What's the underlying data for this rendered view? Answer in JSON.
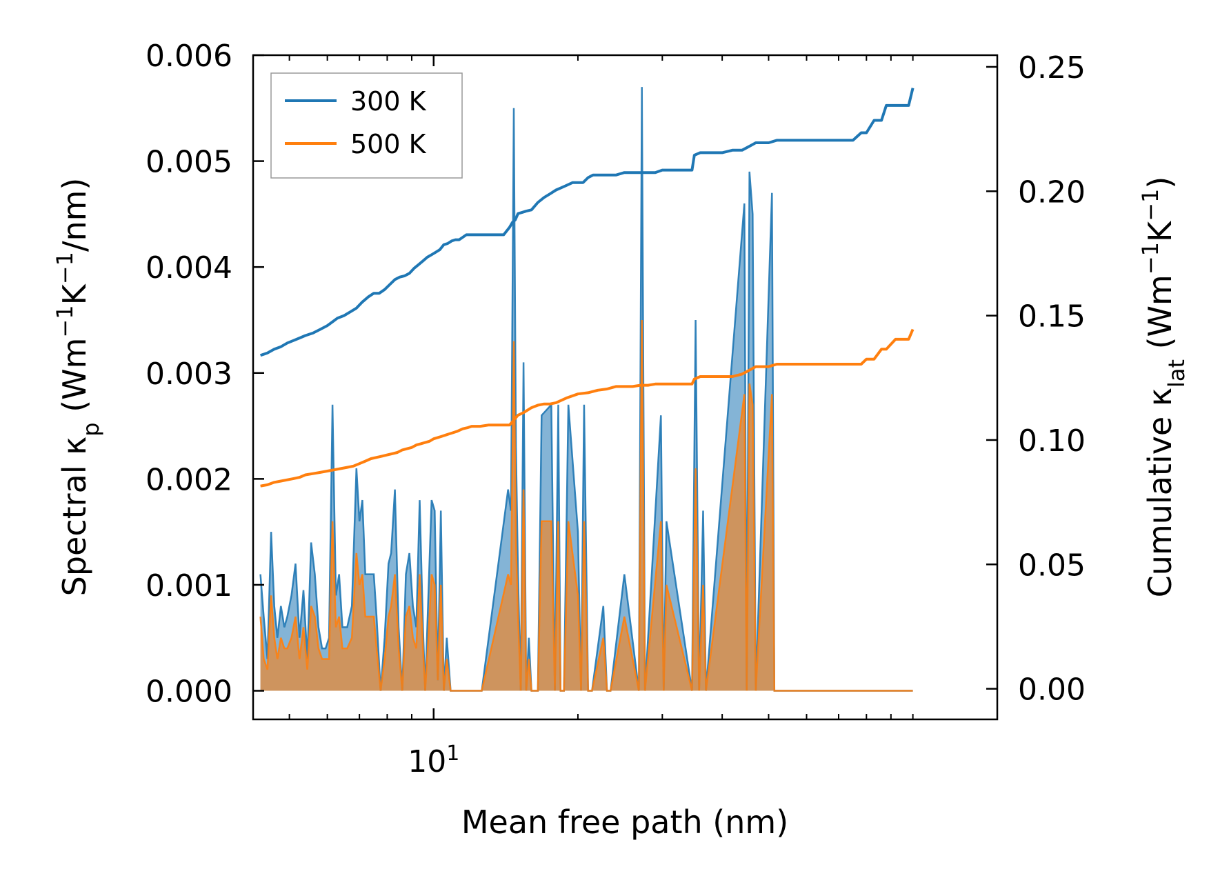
{
  "chart_data": {
    "type": "line",
    "xlabel": "Mean free path (nm)",
    "xscale": "log",
    "xlim": [
      4.2,
      150
    ],
    "x_tick_labels": [
      {
        "value": 10,
        "label": "10",
        "exponent": "1"
      }
    ],
    "left_axis": {
      "label_main": "Spectral κ",
      "label_sub": "p",
      "label_units": " (Wm",
      "label_sup1": "−1",
      "label_mid": "K",
      "label_sup2": "−1",
      "label_end": "/nm)",
      "ylim": [
        -0.00027,
        0.006
      ],
      "ticks": [
        0,
        0.001,
        0.002,
        0.003,
        0.004,
        0.005,
        0.006
      ],
      "tick_labels": [
        "0.000",
        "0.001",
        "0.002",
        "0.003",
        "0.004",
        "0.005",
        "0.006"
      ]
    },
    "right_axis": {
      "label_main": "Cumulative κ",
      "label_sub": "lat",
      "label_units": " (Wm",
      "label_sup1": "−1",
      "label_mid": "K",
      "label_sup2": "−1",
      "label_end": ")",
      "ylim": [
        -0.0123,
        0.2547
      ],
      "ticks": [
        0,
        0.05,
        0.1,
        0.15,
        0.2,
        0.25
      ],
      "tick_labels": [
        "0.00",
        "0.05",
        "0.10",
        "0.15",
        "0.20",
        "0.25"
      ]
    },
    "legend": {
      "location": "top-left",
      "entries": [
        "300 K",
        "500 K"
      ]
    },
    "colors": {
      "300K": "#1f77b4",
      "500K": "#ff7f0e",
      "fill_300K": "#1f77b4",
      "fill_500K": "#ff7f0e"
    },
    "spectral_series": [
      {
        "name": "300 K",
        "x": [
          4.35,
          4.42,
          4.5,
          4.58,
          4.65,
          4.72,
          4.8,
          4.88,
          4.95,
          5.05,
          5.15,
          5.25,
          5.35,
          5.45,
          5.55,
          5.65,
          5.75,
          5.85,
          5.95,
          6.05,
          6.15,
          6.25,
          6.35,
          6.45,
          6.6,
          6.75,
          6.9,
          7.0,
          7.1,
          7.2,
          7.35,
          7.5,
          7.6,
          7.75,
          7.9,
          8.05,
          8.15,
          8.3,
          8.45,
          8.6,
          8.75,
          8.9,
          9.05,
          9.2,
          9.35,
          9.5,
          9.6,
          9.75,
          9.9,
          10.05,
          10.2,
          10.35,
          10.5,
          10.65,
          10.85,
          11.0,
          11.15,
          11.3,
          11.5,
          11.65,
          11.8,
          12.0,
          12.2,
          12.4,
          12.6,
          14.3,
          14.5,
          14.7,
          14.85,
          15.0,
          15.2,
          15.4,
          15.6,
          15.8,
          16.0,
          16.3,
          16.5,
          16.8,
          17.6,
          17.9,
          18.2,
          18.4,
          18.7,
          19.1,
          20.0,
          20.3,
          20.6,
          21.0,
          21.4,
          22.6,
          23.0,
          23.4,
          25.0,
          26.8,
          27.2,
          27.6,
          29.8,
          30.2,
          30.6,
          34.6,
          35.2,
          35.8,
          36.5,
          37.0,
          44.5,
          45.0,
          45.6,
          46.3,
          47.0,
          50.8,
          51.4,
          52.0,
          80.0,
          81.0,
          82.0,
          86.0,
          87.0,
          88.0,
          88.7,
          89.5,
          98.0,
          99.0,
          100.0
        ],
        "values": [
          0.0011,
          0.0007,
          0.0003,
          0.0015,
          0.0008,
          0.0005,
          0.0008,
          0.0006,
          0.0007,
          0.0009,
          0.0012,
          0.0005,
          0.00095,
          0.0003,
          0.0014,
          0.0011,
          0.0006,
          0.0004,
          0.0004,
          0.0005,
          0.0027,
          0.0009,
          0.0011,
          0.0006,
          0.0006,
          0.0008,
          0.0021,
          0.0016,
          0.0018,
          0.0011,
          0.0011,
          0.0011,
          0.0007,
          0.0,
          0.0005,
          0.0012,
          0.0013,
          0.0019,
          0.0006,
          0.0,
          0.0011,
          0.0013,
          0.0008,
          0.0006,
          0.0018,
          0.0006,
          0.0,
          0.0009,
          0.0018,
          0.0017,
          0.0001,
          0.0017,
          0.0,
          0.0005,
          0.0,
          0.0,
          0.0,
          0.0,
          0.0,
          0.0,
          0.0,
          0.0,
          0.0,
          0.0,
          0.0,
          0.0019,
          0.0017,
          0.0055,
          0.0023,
          0.0011,
          0.0,
          0.0031,
          0.0,
          0.0005,
          0.0,
          0.0,
          0.0,
          0.0026,
          0.0027,
          0.0,
          0.0027,
          0.0,
          0.0,
          0.0027,
          0.0015,
          0.0,
          0.0027,
          0.0,
          0.0,
          0.0008,
          0.0,
          0.0,
          0.0011,
          0.0,
          0.0057,
          0.0,
          0.0026,
          0.0,
          0.0016,
          0.0,
          0.0035,
          0.0,
          0.0017,
          0.0,
          0.0046,
          0.0,
          0.0049,
          0.0045,
          0.0,
          0.0047,
          0.0,
          0.0,
          0.0,
          0.0,
          0.0,
          0.0,
          0.0,
          0.0,
          0.0,
          0.0,
          0.0,
          0.0,
          0.0
        ]
      },
      {
        "name": "500 K",
        "x": [
          4.35,
          4.42,
          4.5,
          4.58,
          4.65,
          4.72,
          4.8,
          4.88,
          4.95,
          5.05,
          5.15,
          5.25,
          5.35,
          5.45,
          5.55,
          5.65,
          5.75,
          5.85,
          5.95,
          6.05,
          6.15,
          6.25,
          6.35,
          6.45,
          6.6,
          6.75,
          6.9,
          7.0,
          7.1,
          7.2,
          7.35,
          7.5,
          7.6,
          7.75,
          7.9,
          8.05,
          8.15,
          8.3,
          8.45,
          8.6,
          8.75,
          8.9,
          9.05,
          9.2,
          9.35,
          9.5,
          9.6,
          9.75,
          9.9,
          10.05,
          10.2,
          10.35,
          10.5,
          10.65,
          10.85,
          11.0,
          11.15,
          11.3,
          11.5,
          11.65,
          11.8,
          12.0,
          12.2,
          12.4,
          12.6,
          14.3,
          14.5,
          14.7,
          14.85,
          15.0,
          15.2,
          15.4,
          15.6,
          15.8,
          16.0,
          16.3,
          16.5,
          16.8,
          17.6,
          17.9,
          18.2,
          18.4,
          18.7,
          19.1,
          20.0,
          20.3,
          20.6,
          21.0,
          21.4,
          22.6,
          23.0,
          23.4,
          25.0,
          26.8,
          27.2,
          27.6,
          29.8,
          30.2,
          30.6,
          34.6,
          35.2,
          35.8,
          36.5,
          37.0,
          44.5,
          45.0,
          45.6,
          46.3,
          47.0,
          50.8,
          51.4,
          52.0,
          80.0,
          81.0,
          82.0,
          86.0,
          87.0,
          88.0,
          88.7,
          89.5,
          98.0,
          99.0,
          100.0
        ],
        "values": [
          0.0007,
          0.0003,
          0.0002,
          0.0009,
          0.0005,
          0.0003,
          0.0005,
          0.0004,
          0.0004,
          0.0005,
          0.0007,
          0.0003,
          0.0006,
          0.0002,
          0.0008,
          0.0007,
          0.0004,
          0.0003,
          0.0003,
          0.0003,
          0.0016,
          0.0006,
          0.0007,
          0.0004,
          0.0004,
          0.0005,
          0.0013,
          0.001,
          0.0011,
          0.0007,
          0.0007,
          0.0007,
          0.0004,
          0.0,
          0.0003,
          0.0007,
          0.0008,
          0.0011,
          0.0004,
          0.0,
          0.0007,
          0.0008,
          0.0005,
          0.0004,
          0.0011,
          0.0004,
          0.0,
          0.0005,
          0.0011,
          0.001,
          0.0001,
          0.001,
          0.0,
          0.0003,
          0.0,
          0.0,
          0.0,
          0.0,
          0.0,
          0.0,
          0.0,
          0.0,
          0.0,
          0.0,
          0.0,
          0.0011,
          0.001,
          0.0033,
          0.0014,
          0.0007,
          0.0,
          0.0019,
          0.0,
          0.0003,
          0.0,
          0.0,
          0.0,
          0.0016,
          0.0016,
          0.0,
          0.0016,
          0.0,
          0.0,
          0.0016,
          0.0009,
          0.0,
          0.0016,
          0.0,
          0.0,
          0.0005,
          0.0,
          0.0,
          0.0007,
          0.0,
          0.0035,
          0.0,
          0.0016,
          0.0,
          0.001,
          0.0,
          0.0021,
          0.0,
          0.001,
          0.0,
          0.0028,
          0.0,
          0.0029,
          0.0027,
          0.0,
          0.0028,
          0.0,
          0.0,
          0.0,
          0.0,
          0.0,
          0.0,
          0.0,
          0.0,
          0.0,
          0.0,
          0.0,
          0.0,
          0.0
        ]
      }
    ],
    "cumulative_series": [
      {
        "name": "300 K",
        "x": [
          4.35,
          4.5,
          4.65,
          4.8,
          4.95,
          5.1,
          5.25,
          5.4,
          5.6,
          5.8,
          6.0,
          6.15,
          6.3,
          6.5,
          6.7,
          6.9,
          7.1,
          7.3,
          7.5,
          7.7,
          7.9,
          8.1,
          8.3,
          8.5,
          8.7,
          8.9,
          9.1,
          9.3,
          9.5,
          9.7,
          9.9,
          10.1,
          10.3,
          10.5,
          10.7,
          10.9,
          11.1,
          11.3,
          11.5,
          11.7,
          11.9,
          12.1,
          12.3,
          12.5,
          12.7,
          13.0,
          13.5,
          14.0,
          14.4,
          14.6,
          14.8,
          15.0,
          15.3,
          15.6,
          16.0,
          16.5,
          17.0,
          17.5,
          18.0,
          18.5,
          19.0,
          19.5,
          20.0,
          20.5,
          21.0,
          21.5,
          22.0,
          23.0,
          24.0,
          25.0,
          26.0,
          27.0,
          28.0,
          29.0,
          30.0,
          31.0,
          32.0,
          33.0,
          34.0,
          34.6,
          35.0,
          36.0,
          38.0,
          40.0,
          42.0,
          44.0,
          45.0,
          46.0,
          47.0,
          50.0,
          52.0,
          55.0,
          60.0,
          65.0,
          70.0,
          75.0,
          78.0,
          80.0,
          83.0,
          86.0,
          88.0,
          92.0,
          96.0,
          98.0,
          100.0
        ],
        "values": [
          0.134,
          0.135,
          0.1365,
          0.1375,
          0.139,
          0.14,
          0.141,
          0.142,
          0.143,
          0.1445,
          0.146,
          0.1475,
          0.149,
          0.15,
          0.1515,
          0.153,
          0.1555,
          0.1575,
          0.159,
          0.159,
          0.1605,
          0.1625,
          0.1645,
          0.1655,
          0.166,
          0.167,
          0.169,
          0.1705,
          0.172,
          0.1735,
          0.1745,
          0.1755,
          0.1765,
          0.1785,
          0.179,
          0.18,
          0.1805,
          0.1805,
          0.1815,
          0.1825,
          0.1825,
          0.1825,
          0.1825,
          0.1825,
          0.1825,
          0.1825,
          0.1825,
          0.1825,
          0.1855,
          0.1875,
          0.1885,
          0.191,
          0.1915,
          0.192,
          0.1925,
          0.1955,
          0.1975,
          0.199,
          0.2005,
          0.2015,
          0.2025,
          0.2035,
          0.2035,
          0.2035,
          0.2055,
          0.2065,
          0.2065,
          0.2065,
          0.2065,
          0.2075,
          0.2075,
          0.2075,
          0.2075,
          0.2075,
          0.2085,
          0.2085,
          0.2085,
          0.2085,
          0.2085,
          0.2085,
          0.2145,
          0.2155,
          0.2155,
          0.2155,
          0.2165,
          0.2165,
          0.2175,
          0.2185,
          0.2195,
          0.2195,
          0.2205,
          0.2205,
          0.2205,
          0.2205,
          0.2205,
          0.2205,
          0.2235,
          0.2235,
          0.2285,
          0.2285,
          0.2345,
          0.2345,
          0.2345,
          0.2345,
          0.2415
        ]
      },
      {
        "name": "500 K",
        "x": [
          4.35,
          4.5,
          4.65,
          4.8,
          4.95,
          5.1,
          5.25,
          5.4,
          5.6,
          5.8,
          6.0,
          6.2,
          6.4,
          6.6,
          6.8,
          7.0,
          7.2,
          7.4,
          7.6,
          7.8,
          8.0,
          8.2,
          8.4,
          8.6,
          8.8,
          9.0,
          9.2,
          9.4,
          9.6,
          9.8,
          10.0,
          10.2,
          10.4,
          10.6,
          10.8,
          11.0,
          11.2,
          11.5,
          11.8,
          12.0,
          12.5,
          13.0,
          14.0,
          14.4,
          14.7,
          15.0,
          15.4,
          16.0,
          16.5,
          17.0,
          17.5,
          18.0,
          19.0,
          20.0,
          21.0,
          22.0,
          23.0,
          24.0,
          25.0,
          26.0,
          27.0,
          28.0,
          29.0,
          30.0,
          31.0,
          32.0,
          34.0,
          34.6,
          35.0,
          36.0,
          38.0,
          40.0,
          42.0,
          44.0,
          45.0,
          46.0,
          47.0,
          50.0,
          52.0,
          55.0,
          60.0,
          65.0,
          70.0,
          75.0,
          78.0,
          80.0,
          83.0,
          86.0,
          88.0,
          92.0,
          96.0,
          98.0,
          100.0
        ],
        "values": [
          0.0815,
          0.082,
          0.083,
          0.0835,
          0.084,
          0.0845,
          0.085,
          0.086,
          0.0865,
          0.087,
          0.0875,
          0.088,
          0.0885,
          0.089,
          0.0895,
          0.0905,
          0.0915,
          0.0925,
          0.093,
          0.0935,
          0.094,
          0.0945,
          0.095,
          0.096,
          0.0965,
          0.097,
          0.098,
          0.0985,
          0.099,
          0.0995,
          0.1005,
          0.101,
          0.1015,
          0.102,
          0.1025,
          0.103,
          0.1035,
          0.1045,
          0.105,
          0.1055,
          0.1055,
          0.106,
          0.106,
          0.106,
          0.108,
          0.11,
          0.111,
          0.113,
          0.114,
          0.1145,
          0.1145,
          0.115,
          0.117,
          0.1185,
          0.119,
          0.12,
          0.1205,
          0.1215,
          0.1215,
          0.1215,
          0.122,
          0.122,
          0.1225,
          0.1225,
          0.1225,
          0.1225,
          0.1225,
          0.1225,
          0.1245,
          0.1255,
          0.1255,
          0.1255,
          0.1255,
          0.1265,
          0.1275,
          0.1285,
          0.1295,
          0.1295,
          0.1305,
          0.1305,
          0.1305,
          0.1305,
          0.1305,
          0.1305,
          0.1305,
          0.1325,
          0.1325,
          0.1365,
          0.1365,
          0.1405,
          0.1405,
          0.1405,
          0.1445
        ]
      }
    ]
  }
}
